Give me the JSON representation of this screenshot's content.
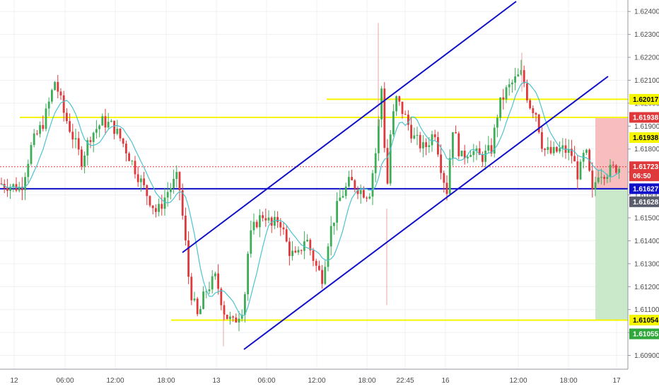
{
  "chart_data": {
    "type": "candlestick",
    "symbol_colors": {
      "up": "#3dae57",
      "down": "#e0393c",
      "ma": "#4cc3cf",
      "grid": "#eef0f4",
      "channel": "#1010c8",
      "horizontal_blue": "#1010c8",
      "yellow_level": "#f5f500",
      "stop_zone": "#f7b7b8",
      "target_zone": "#c4e6c4",
      "dotted_current": "#e0393c"
    },
    "y_axis": {
      "range": [
        1.6084,
        1.6245
      ],
      "ticks": [
        "1.62400",
        "1.62300",
        "1.62200",
        "1.62100",
        "1.62000",
        "1.61900",
        "1.61800",
        "1.61700",
        "1.61600",
        "1.61500",
        "1.61400",
        "1.61300",
        "1.61200",
        "1.61100",
        "1.61000",
        "1.60900"
      ]
    },
    "x_axis": {
      "ticks": [
        "12",
        "06:00",
        "12:00",
        "18:00",
        "13",
        "06:00",
        "12:00",
        "18:00",
        "22:45",
        "16",
        "12:00",
        "18:00",
        "17"
      ]
    },
    "price_labels": [
      {
        "text": "1.62017",
        "price": 1.62017,
        "bg": "#f5f500",
        "fg": "#000000"
      },
      {
        "text": "1.61938",
        "price": 1.61938,
        "bg": "#e0393c",
        "fg": "#ffffff"
      },
      {
        "text": "1.61938",
        "price": 1.6185,
        "bg": "#f5f500",
        "fg": "#000000"
      },
      {
        "text": "1.61723",
        "price": 1.61723,
        "bg": "#e0393c",
        "fg": "#ffffff"
      },
      {
        "text": "06:50",
        "price": 1.61683,
        "bg": "#e0393c",
        "fg": "#ffffff"
      },
      {
        "text": "1.61627",
        "price": 1.61627,
        "bg": "#1010c8",
        "fg": "#ffffff"
      },
      {
        "text": "1.61628",
        "price": 1.6157,
        "bg": "#5a5d6b",
        "fg": "#ffffff"
      },
      {
        "text": "1.61054",
        "price": 1.61054,
        "bg": "#f5f500",
        "fg": "#000000"
      },
      {
        "text": "1.61055",
        "price": 1.60994,
        "bg": "#2fa73a",
        "fg": "#ffffff"
      }
    ],
    "levels": {
      "yellow": [
        1.62017,
        1.61938,
        1.61054
      ],
      "blue": 1.61627,
      "current": 1.61723,
      "stop": 1.61938,
      "target": 1.61054,
      "entry": 1.61627
    },
    "trend_channel": {
      "upper": [
        [
          "13 00:00",
          1.614
        ],
        [
          "16 03:00",
          1.6245
        ]
      ],
      "lower": [
        [
          "13 03:00",
          1.6092
        ],
        [
          "16 18:00",
          1.6208
        ]
      ]
    },
    "grid": true
  }
}
